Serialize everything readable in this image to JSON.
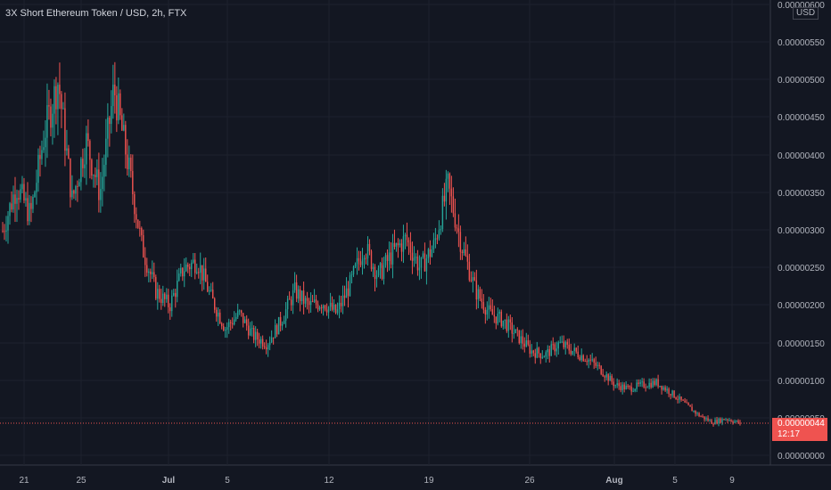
{
  "header": {
    "title": "3X Short Ethereum Token / USD, 2h, FTX"
  },
  "price_axis": {
    "unit": "USD"
  },
  "price_tag": {
    "value": "0.00000044",
    "countdown": "12:17"
  },
  "colors": {
    "up": "#26a69a",
    "down": "#ef5350",
    "background": "#131722",
    "grid": "#1e222d"
  },
  "chart_data": {
    "type": "candlestick",
    "y_ticks": [
      "0.00000600",
      "0.00000550",
      "0.00000500",
      "0.00000450",
      "0.00000400",
      "0.00000350",
      "0.00000300",
      "0.00000250",
      "0.00000200",
      "0.00000150",
      "0.00000100",
      "0.00000050",
      "0.00000000",
      "-0.00000000"
    ],
    "x_ticks": [
      "21",
      "25",
      "Jul",
      "5",
      "12",
      "19",
      "26",
      "Aug",
      "5",
      "9"
    ],
    "last_price": 4.4e-07,
    "ylim": [
      -0.0,
      6e-06
    ],
    "price_path": [
      [
        "18",
        3.0
      ],
      [
        "19",
        3.6
      ],
      [
        "20",
        3.2
      ],
      [
        "21",
        4.3
      ],
      [
        "22",
        5.0
      ],
      [
        "23",
        3.4
      ],
      [
        "24",
        4.2
      ],
      [
        "25",
        3.5
      ],
      [
        "26",
        4.9
      ],
      [
        "27",
        3.9
      ],
      [
        "28",
        2.8
      ],
      [
        "29",
        2.2
      ],
      [
        "30",
        2.0
      ],
      [
        "Jul",
        2.5
      ],
      [
        "2",
        2.6
      ],
      [
        "3",
        2.1
      ],
      [
        "4",
        1.7
      ],
      [
        "5",
        1.9
      ],
      [
        "6",
        1.6
      ],
      [
        "7",
        1.5
      ],
      [
        "8",
        1.8
      ],
      [
        "9",
        2.2
      ],
      [
        "10",
        2.0
      ],
      [
        "11",
        2.05
      ],
      [
        "12",
        1.9
      ],
      [
        "13",
        2.3
      ],
      [
        "14",
        2.8
      ],
      [
        "15",
        2.4
      ],
      [
        "16",
        2.7
      ],
      [
        "17",
        2.9
      ],
      [
        "18b",
        2.5
      ],
      [
        "19",
        2.8
      ],
      [
        "20",
        3.6
      ],
      [
        "21",
        2.8
      ],
      [
        "22",
        2.2
      ],
      [
        "23",
        1.9
      ],
      [
        "24",
        1.8
      ],
      [
        "25",
        1.6
      ],
      [
        "26",
        1.4
      ],
      [
        "27",
        1.35
      ],
      [
        "28",
        1.5
      ],
      [
        "29",
        1.4
      ],
      [
        "30",
        1.3
      ],
      [
        "31",
        1.15
      ],
      [
        "Aug",
        0.95
      ],
      [
        "2",
        0.9
      ],
      [
        "3",
        0.95
      ],
      [
        "4",
        0.98
      ],
      [
        "5",
        0.85
      ],
      [
        "6",
        0.7
      ],
      [
        "7",
        0.55
      ],
      [
        "8",
        0.45
      ],
      [
        "9",
        0.5
      ],
      [
        "10",
        0.44
      ]
    ]
  }
}
